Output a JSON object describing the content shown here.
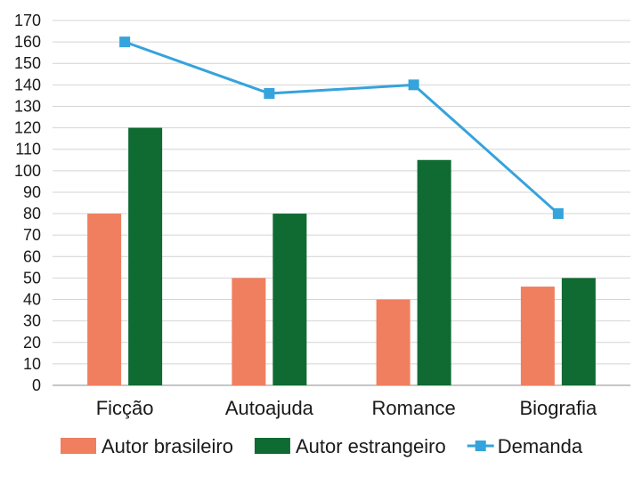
{
  "chart_data": {
    "type": "bar",
    "categories": [
      "Ficção",
      "Autoajuda",
      "Romance",
      "Biografia"
    ],
    "series": [
      {
        "name": "Autor brasileiro",
        "type": "bar",
        "color": "#f07f5f",
        "values": [
          80,
          50,
          40,
          46
        ]
      },
      {
        "name": "Autor estrangeiro",
        "type": "bar",
        "color": "#0f6b32",
        "values": [
          120,
          80,
          105,
          50
        ]
      },
      {
        "name": "Demanda",
        "type": "line",
        "marker": "square",
        "color": "#35a3dc",
        "values": [
          160,
          136,
          140,
          80
        ]
      }
    ],
    "ylim": [
      0,
      170
    ],
    "ytick_step": 10,
    "grid": true,
    "legend_position": "bottom"
  }
}
